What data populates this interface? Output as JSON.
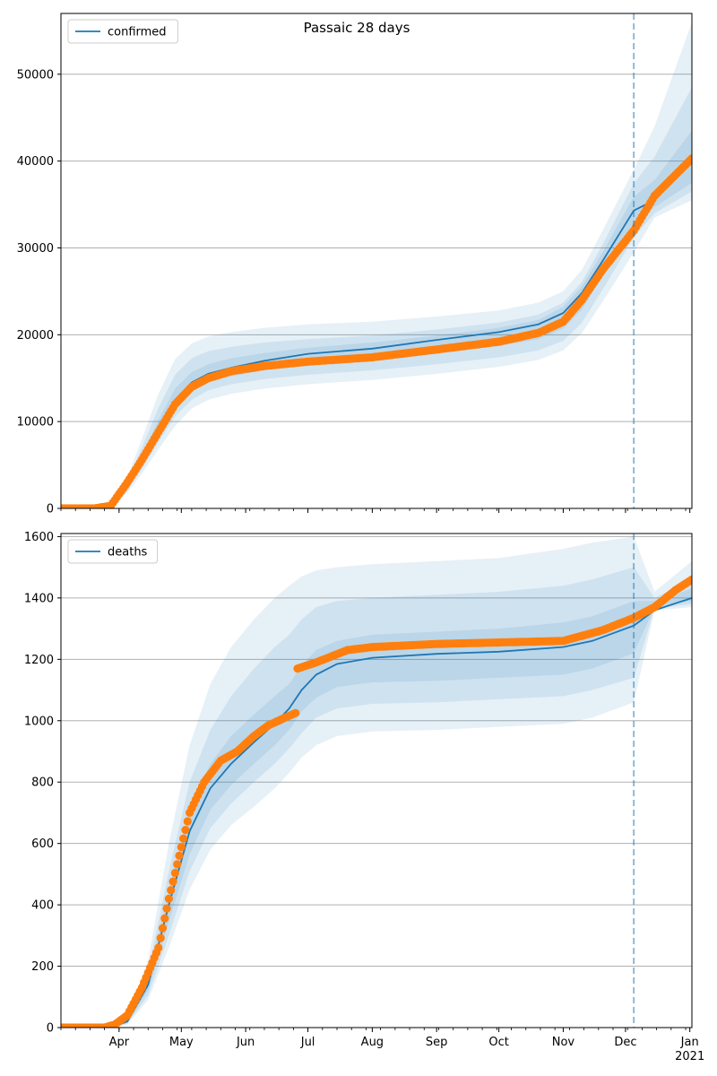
{
  "figure_title": "Passaic 28 days",
  "colors": {
    "model_line": "#1f77b4",
    "observed_points": "#ff7f0e",
    "band": "#1f77b4",
    "grid": "#b0b0b0",
    "cutoff_line": "#1f77b4"
  },
  "x_axis": {
    "tick_labels": [
      "Apr",
      "May",
      "Jun",
      "Jul",
      "Aug",
      "Sep",
      "Oct",
      "Nov",
      "Dec",
      "Jan"
    ],
    "tick_dates": [
      "2020-04-01",
      "2020-05-01",
      "2020-06-01",
      "2020-07-01",
      "2020-08-01",
      "2020-09-01",
      "2020-10-01",
      "2020-11-01",
      "2020-12-01",
      "2021-01-01"
    ],
    "year_label": "2021",
    "range": [
      "2020-03-04",
      "2021-01-02"
    ]
  },
  "chart_data": [
    {
      "type": "line",
      "legend": "confirmed",
      "legend_position": "top-left",
      "grid": "horizontal",
      "ylim": [
        0,
        57000
      ],
      "yticks": [
        "0",
        "10000",
        "20000",
        "30000",
        "40000",
        "50000"
      ],
      "forecast_start": "2020-12-05",
      "model": {
        "x": [
          "2020-03-04",
          "2020-03-20",
          "2020-03-28",
          "2020-04-05",
          "2020-04-12",
          "2020-04-20",
          "2020-04-28",
          "2020-05-06",
          "2020-05-14",
          "2020-05-25",
          "2020-06-10",
          "2020-07-01",
          "2020-08-01",
          "2020-09-01",
          "2020-10-01",
          "2020-10-20",
          "2020-11-01",
          "2020-11-10",
          "2020-11-20",
          "2020-12-05",
          "2020-12-15",
          "2021-01-02"
        ],
        "y": [
          0,
          0,
          300,
          2500,
          5500,
          9000,
          12500,
          14500,
          15500,
          16200,
          17000,
          17800,
          18400,
          19400,
          20300,
          21200,
          22500,
          24800,
          28500,
          34300,
          35500,
          40000
        ],
        "bands": [
          {
            "lower": [
              0,
              0,
              200,
              1800,
              4000,
              6800,
              9500,
              11500,
              12500,
              13200,
              13800,
              14300,
              14800,
              15500,
              16300,
              17100,
              18200,
              20200,
              23800,
              29500,
              33500,
              35500
            ],
            "upper": [
              0,
              0,
              500,
              3600,
              8000,
              13200,
              17200,
              19000,
              19800,
              20300,
              20800,
              21200,
              21500,
              22100,
              22800,
              23700,
              25000,
              27500,
              32000,
              39000,
              44000,
              56000
            ]
          },
          {
            "lower": [
              0,
              0,
              240,
              2000,
              4500,
              7600,
              10600,
              12500,
              13600,
              14300,
              14900,
              15400,
              15900,
              16600,
              17400,
              18200,
              19300,
              21400,
              25200,
              31200,
              34000,
              36500
            ],
            "upper": [
              0,
              0,
              420,
              3200,
              7000,
              11600,
              15400,
              17300,
              18100,
              18600,
              19100,
              19500,
              19900,
              20600,
              21400,
              22300,
              23700,
              26100,
              30400,
              37400,
              40500,
              48500
            ]
          },
          {
            "lower": [
              0,
              0,
              270,
              2250,
              5000,
              8300,
              11500,
              13400,
              14500,
              15200,
              15900,
              16500,
              17000,
              17800,
              18700,
              19500,
              20700,
              22900,
              26700,
              32600,
              34700,
              37500
            ],
            "upper": [
              0,
              0,
              350,
              2800,
              6200,
              10200,
              13800,
              15700,
              16600,
              17300,
              17900,
              18500,
              19100,
              19900,
              20800,
              21700,
              23200,
              25600,
              29500,
              35900,
              37800,
              43500
            ]
          }
        ]
      },
      "observed": {
        "x": [
          "2020-03-04",
          "2020-03-20",
          "2020-03-28",
          "2020-04-05",
          "2020-04-12",
          "2020-04-20",
          "2020-04-28",
          "2020-05-06",
          "2020-05-14",
          "2020-05-25",
          "2020-06-10",
          "2020-07-01",
          "2020-08-01",
          "2020-09-01",
          "2020-10-01",
          "2020-10-20",
          "2020-11-01",
          "2020-11-10",
          "2020-11-20",
          "2020-12-05",
          "2020-12-15",
          "2021-01-02"
        ],
        "y": [
          0,
          0,
          300,
          3000,
          5600,
          8800,
          12000,
          14000,
          15000,
          15800,
          16400,
          16900,
          17400,
          18300,
          19200,
          20200,
          21500,
          24000,
          27500,
          32000,
          36000,
          40300
        ]
      }
    },
    {
      "type": "line",
      "legend": "deaths",
      "legend_position": "top-left",
      "grid": "horizontal",
      "ylim": [
        0,
        1610
      ],
      "yticks": [
        "0",
        "200",
        "400",
        "600",
        "800",
        "1000",
        "1200",
        "1400",
        "1600"
      ],
      "forecast_start": "2020-12-05",
      "model": {
        "x": [
          "2020-03-04",
          "2020-03-28",
          "2020-04-05",
          "2020-04-15",
          "2020-04-25",
          "2020-05-05",
          "2020-05-15",
          "2020-05-25",
          "2020-06-05",
          "2020-06-15",
          "2020-06-22",
          "2020-06-28",
          "2020-07-05",
          "2020-07-15",
          "2020-08-01",
          "2020-09-01",
          "2020-10-01",
          "2020-11-01",
          "2020-11-15",
          "2020-12-05",
          "2020-12-15",
          "2021-01-02"
        ],
        "y": [
          0,
          0,
          20,
          140,
          400,
          640,
          780,
          860,
          930,
          990,
          1040,
          1100,
          1150,
          1185,
          1205,
          1218,
          1225,
          1240,
          1260,
          1310,
          1360,
          1400
        ],
        "bands": [
          {
            "lower": [
              0,
              0,
              10,
              90,
              260,
              450,
              580,
              660,
              720,
              780,
              830,
              880,
              920,
              950,
              965,
              970,
              980,
              990,
              1010,
              1060,
              1360,
              1370
            ],
            "upper": [
              0,
              0,
              35,
              220,
              600,
              920,
              1120,
              1240,
              1330,
              1400,
              1440,
              1470,
              1490,
              1500,
              1510,
              1520,
              1530,
              1560,
              1580,
              1600,
              1420,
              1520
            ]
          },
          {
            "lower": [
              0,
              0,
              13,
              105,
              300,
              510,
              650,
              730,
              800,
              860,
              910,
              960,
              1010,
              1040,
              1055,
              1060,
              1070,
              1080,
              1100,
              1140,
              1365,
              1380
            ],
            "upper": [
              0,
              0,
              28,
              185,
              510,
              800,
              970,
              1080,
              1170,
              1240,
              1280,
              1330,
              1370,
              1390,
              1400,
              1410,
              1420,
              1440,
              1460,
              1500,
              1400,
              1460
            ]
          },
          {
            "lower": [
              0,
              0,
              16,
              120,
              345,
              565,
              710,
              790,
              860,
              920,
              970,
              1030,
              1075,
              1110,
              1125,
              1130,
              1140,
              1150,
              1170,
              1220,
              1370,
              1390
            ],
            "upper": [
              0,
              0,
              24,
              160,
              450,
              710,
              860,
              950,
              1020,
              1080,
              1120,
              1180,
              1230,
              1260,
              1280,
              1290,
              1300,
              1320,
              1340,
              1390,
              1390,
              1430
            ]
          }
        ]
      },
      "observed": {
        "x": [
          "2020-03-04",
          "2020-03-25",
          "2020-03-30",
          "2020-04-05",
          "2020-04-12",
          "2020-04-20",
          "2020-04-25",
          "2020-04-30",
          "2020-05-05",
          "2020-05-12",
          "2020-05-20",
          "2020-05-28",
          "2020-06-05",
          "2020-06-12",
          "2020-06-20",
          "2020-06-25",
          "2020-06-26",
          "2020-07-05",
          "2020-07-20",
          "2020-08-01",
          "2020-09-01",
          "2020-10-01",
          "2020-11-01",
          "2020-11-20",
          "2020-12-05",
          "2020-12-15",
          "2020-12-25",
          "2021-01-02"
        ],
        "y": [
          0,
          0,
          10,
          40,
          130,
          260,
          420,
          560,
          700,
          800,
          870,
          900,
          950,
          985,
          1010,
          1025,
          1170,
          1190,
          1230,
          1240,
          1250,
          1255,
          1260,
          1295,
          1335,
          1370,
          1425,
          1460
        ]
      }
    }
  ]
}
